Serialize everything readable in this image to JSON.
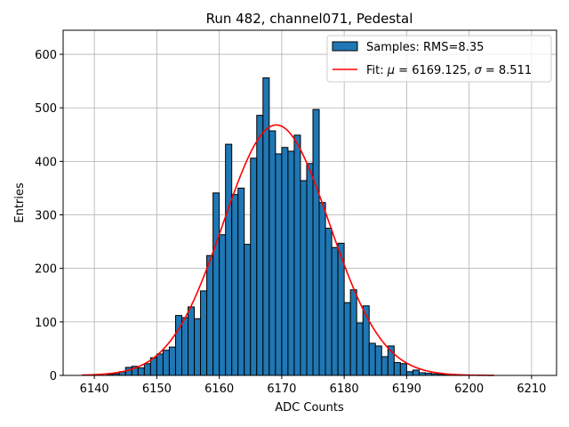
{
  "chart_data": {
    "type": "bar",
    "title": "Run 482, channel071, Pedestal",
    "xlabel": "ADC Counts",
    "ylabel": "Entries",
    "xlim": [
      6135,
      6214
    ],
    "ylim": [
      0,
      645
    ],
    "xticks": [
      6140,
      6150,
      6160,
      6170,
      6180,
      6190,
      6200,
      6210
    ],
    "yticks": [
      0,
      100,
      200,
      300,
      400,
      500,
      600
    ],
    "grid": true,
    "legend_position": "top-right",
    "bin_width": 1,
    "histogram": {
      "name": "Samples: RMS=8.35",
      "color": "#1f77b4",
      "edge_color": "#000000",
      "bin_starts": [
        6142,
        6143,
        6144,
        6145,
        6146,
        6147,
        6148,
        6149,
        6150,
        6151,
        6152,
        6153,
        6154,
        6155,
        6156,
        6157,
        6158,
        6159,
        6160,
        6161,
        6162,
        6163,
        6164,
        6165,
        6166,
        6167,
        6168,
        6169,
        6170,
        6171,
        6172,
        6173,
        6174,
        6175,
        6176,
        6177,
        6178,
        6179,
        6180,
        6181,
        6182,
        6183,
        6184,
        6185,
        6186,
        6187,
        6188,
        6189,
        6190,
        6191,
        6192,
        6193,
        6194,
        6195,
        6196
      ],
      "counts": [
        2,
        3,
        7,
        15,
        17,
        14,
        22,
        33,
        40,
        47,
        53,
        112,
        108,
        128,
        106,
        158,
        224,
        341,
        263,
        432,
        338,
        350,
        245,
        406,
        486,
        556,
        457,
        414,
        426,
        419,
        449,
        364,
        396,
        497,
        323,
        275,
        239,
        247,
        136,
        160,
        98,
        130,
        60,
        55,
        35,
        55,
        24,
        22,
        7,
        10,
        5,
        4,
        3,
        2,
        1
      ]
    },
    "fit": {
      "name_prefix": "Fit: ",
      "name_mu_symbol": "μ",
      "name_mu_value": " = 6169.125, ",
      "name_sigma_symbol": "σ",
      "name_sigma_value": " = 8.511",
      "color": "#ff0000",
      "mu": 6169.125,
      "sigma": 8.511,
      "amplitude": 468,
      "x_range": [
        6138,
        6204
      ]
    }
  }
}
